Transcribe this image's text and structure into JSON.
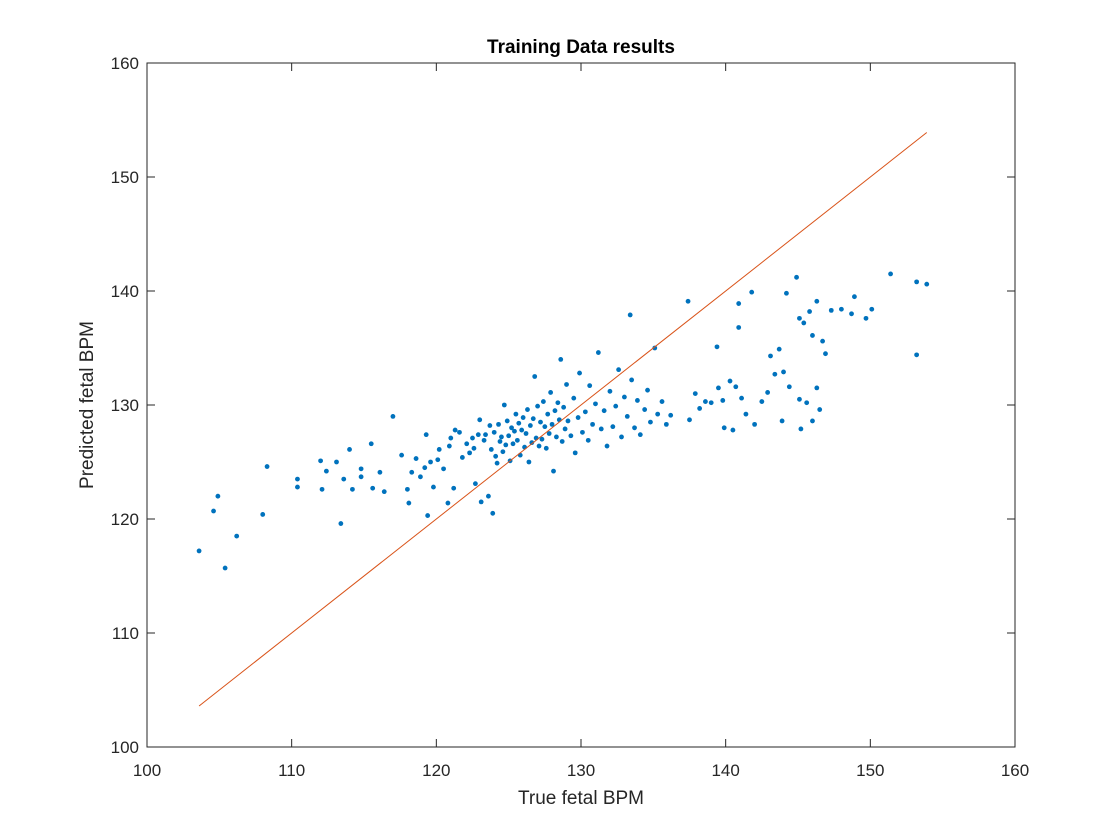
{
  "chart_data": {
    "type": "scatter",
    "title": "Training Data results",
    "xlabel": "True fetal BPM",
    "ylabel": "Predicted fetal BPM",
    "xlim": [
      100,
      160
    ],
    "ylim": [
      100,
      160
    ],
    "xticks": [
      "100",
      "110",
      "120",
      "130",
      "140",
      "150",
      "160"
    ],
    "yticks": [
      "100",
      "110",
      "120",
      "130",
      "140",
      "150",
      "160"
    ],
    "grid": false,
    "box": true,
    "series": [
      {
        "kind": "points",
        "color": "#0072BD",
        "points": [
          [
            103.6,
            117.2
          ],
          [
            104.6,
            120.7
          ],
          [
            104.9,
            122.0
          ],
          [
            105.4,
            115.7
          ],
          [
            106.2,
            118.5
          ],
          [
            108.0,
            120.4
          ],
          [
            108.3,
            124.6
          ],
          [
            110.4,
            122.8
          ],
          [
            110.4,
            123.5
          ],
          [
            112.0,
            125.1
          ],
          [
            112.1,
            122.6
          ],
          [
            112.4,
            124.2
          ],
          [
            113.1,
            125.0
          ],
          [
            113.4,
            119.6
          ],
          [
            113.6,
            123.5
          ],
          [
            114.0,
            126.1
          ],
          [
            114.2,
            122.6
          ],
          [
            114.8,
            124.4
          ],
          [
            114.8,
            123.7
          ],
          [
            115.5,
            126.6
          ],
          [
            115.6,
            122.7
          ],
          [
            116.1,
            124.1
          ],
          [
            116.4,
            122.4
          ],
          [
            117.0,
            129.0
          ],
          [
            117.6,
            125.6
          ],
          [
            118.0,
            122.6
          ],
          [
            118.1,
            121.4
          ],
          [
            118.3,
            124.1
          ],
          [
            118.6,
            125.3
          ],
          [
            118.9,
            123.7
          ],
          [
            119.2,
            124.5
          ],
          [
            119.3,
            127.4
          ],
          [
            119.4,
            120.3
          ],
          [
            119.6,
            125.0
          ],
          [
            119.8,
            122.8
          ],
          [
            120.1,
            125.2
          ],
          [
            120.2,
            126.1
          ],
          [
            120.5,
            124.4
          ],
          [
            120.8,
            121.4
          ],
          [
            120.9,
            126.4
          ],
          [
            121.0,
            127.1
          ],
          [
            121.2,
            122.7
          ],
          [
            121.3,
            127.8
          ],
          [
            121.6,
            127.6
          ],
          [
            121.8,
            125.4
          ],
          [
            122.1,
            126.6
          ],
          [
            122.3,
            125.8
          ],
          [
            122.5,
            127.1
          ],
          [
            122.6,
            126.2
          ],
          [
            122.7,
            123.1
          ],
          [
            122.9,
            127.4
          ],
          [
            123.0,
            128.7
          ],
          [
            123.1,
            121.5
          ],
          [
            123.3,
            126.9
          ],
          [
            123.4,
            127.4
          ],
          [
            123.6,
            122.0
          ],
          [
            123.7,
            128.2
          ],
          [
            123.8,
            126.1
          ],
          [
            123.9,
            120.5
          ],
          [
            124.0,
            127.6
          ],
          [
            124.1,
            125.5
          ],
          [
            124.2,
            124.9
          ],
          [
            124.3,
            128.3
          ],
          [
            124.4,
            126.8
          ],
          [
            124.5,
            127.2
          ],
          [
            124.6,
            125.9
          ],
          [
            124.7,
            130.0
          ],
          [
            124.8,
            126.5
          ],
          [
            124.9,
            128.6
          ],
          [
            125.0,
            127.3
          ],
          [
            125.1,
            125.1
          ],
          [
            125.2,
            128.0
          ],
          [
            125.3,
            126.6
          ],
          [
            125.4,
            127.7
          ],
          [
            125.5,
            129.2
          ],
          [
            125.6,
            126.9
          ],
          [
            125.7,
            128.4
          ],
          [
            125.8,
            125.6
          ],
          [
            125.9,
            127.8
          ],
          [
            126.0,
            128.9
          ],
          [
            126.1,
            126.3
          ],
          [
            126.2,
            127.5
          ],
          [
            126.3,
            129.6
          ],
          [
            126.4,
            125.0
          ],
          [
            126.5,
            128.2
          ],
          [
            126.6,
            126.7
          ],
          [
            126.7,
            128.8
          ],
          [
            126.8,
            132.5
          ],
          [
            126.9,
            127.1
          ],
          [
            127.0,
            129.9
          ],
          [
            127.1,
            126.4
          ],
          [
            127.2,
            128.5
          ],
          [
            127.3,
            127.0
          ],
          [
            127.4,
            130.3
          ],
          [
            127.5,
            128.1
          ],
          [
            127.6,
            126.2
          ],
          [
            127.7,
            129.2
          ],
          [
            127.8,
            127.5
          ],
          [
            127.9,
            131.1
          ],
          [
            128.0,
            128.3
          ],
          [
            128.1,
            124.2
          ],
          [
            128.2,
            129.5
          ],
          [
            128.3,
            127.2
          ],
          [
            128.4,
            130.2
          ],
          [
            128.5,
            128.7
          ],
          [
            128.6,
            134.0
          ],
          [
            128.7,
            126.8
          ],
          [
            128.8,
            129.8
          ],
          [
            128.9,
            127.9
          ],
          [
            129.0,
            131.8
          ],
          [
            129.1,
            128.6
          ],
          [
            129.3,
            127.3
          ],
          [
            129.5,
            130.6
          ],
          [
            129.6,
            125.8
          ],
          [
            129.8,
            128.9
          ],
          [
            129.9,
            132.8
          ],
          [
            130.1,
            127.6
          ],
          [
            130.3,
            129.4
          ],
          [
            130.5,
            126.9
          ],
          [
            130.6,
            131.7
          ],
          [
            130.8,
            128.3
          ],
          [
            131.0,
            130.1
          ],
          [
            131.2,
            134.6
          ],
          [
            131.4,
            127.9
          ],
          [
            131.6,
            129.5
          ],
          [
            131.8,
            126.4
          ],
          [
            132.0,
            131.2
          ],
          [
            132.2,
            128.1
          ],
          [
            132.4,
            129.9
          ],
          [
            132.6,
            133.1
          ],
          [
            132.8,
            127.2
          ],
          [
            133.0,
            130.7
          ],
          [
            133.2,
            129.0
          ],
          [
            133.4,
            137.9
          ],
          [
            133.5,
            132.2
          ],
          [
            133.7,
            128.0
          ],
          [
            133.9,
            130.4
          ],
          [
            134.1,
            127.4
          ],
          [
            134.4,
            129.6
          ],
          [
            134.6,
            131.3
          ],
          [
            134.8,
            128.5
          ],
          [
            135.1,
            135.0
          ],
          [
            135.3,
            129.2
          ],
          [
            135.6,
            130.3
          ],
          [
            135.9,
            128.3
          ],
          [
            136.2,
            129.1
          ],
          [
            137.4,
            139.1
          ],
          [
            137.5,
            128.7
          ],
          [
            137.9,
            131.0
          ],
          [
            138.2,
            129.7
          ],
          [
            138.6,
            130.3
          ],
          [
            139.0,
            130.2
          ],
          [
            139.4,
            135.1
          ],
          [
            139.5,
            131.5
          ],
          [
            139.8,
            130.4
          ],
          [
            139.9,
            128.0
          ],
          [
            140.3,
            132.1
          ],
          [
            140.5,
            127.8
          ],
          [
            140.7,
            131.6
          ],
          [
            140.9,
            136.8
          ],
          [
            140.9,
            138.9
          ],
          [
            141.1,
            130.6
          ],
          [
            141.4,
            129.2
          ],
          [
            141.8,
            139.9
          ],
          [
            142.0,
            128.3
          ],
          [
            142.5,
            130.3
          ],
          [
            142.9,
            131.1
          ],
          [
            143.1,
            134.3
          ],
          [
            143.4,
            132.7
          ],
          [
            143.7,
            134.9
          ],
          [
            143.9,
            128.6
          ],
          [
            144.0,
            132.9
          ],
          [
            144.2,
            139.8
          ],
          [
            144.4,
            131.6
          ],
          [
            144.9,
            141.2
          ],
          [
            145.1,
            130.5
          ],
          [
            145.1,
            137.6
          ],
          [
            145.2,
            127.9
          ],
          [
            145.4,
            137.2
          ],
          [
            145.6,
            130.2
          ],
          [
            145.8,
            138.2
          ],
          [
            146.0,
            136.1
          ],
          [
            146.0,
            128.6
          ],
          [
            146.3,
            139.1
          ],
          [
            146.3,
            131.5
          ],
          [
            146.5,
            129.6
          ],
          [
            146.7,
            135.6
          ],
          [
            146.9,
            134.5
          ],
          [
            147.3,
            138.3
          ],
          [
            148.0,
            138.4
          ],
          [
            148.9,
            139.5
          ],
          [
            148.7,
            138.0
          ],
          [
            149.7,
            137.6
          ],
          [
            150.1,
            138.4
          ],
          [
            151.4,
            141.5
          ],
          [
            153.2,
            140.8
          ],
          [
            153.2,
            134.4
          ],
          [
            153.9,
            140.6
          ]
        ]
      },
      {
        "kind": "line",
        "color": "#D95319",
        "points": [
          [
            103.6,
            103.6
          ],
          [
            153.9,
            153.9
          ]
        ]
      }
    ]
  }
}
